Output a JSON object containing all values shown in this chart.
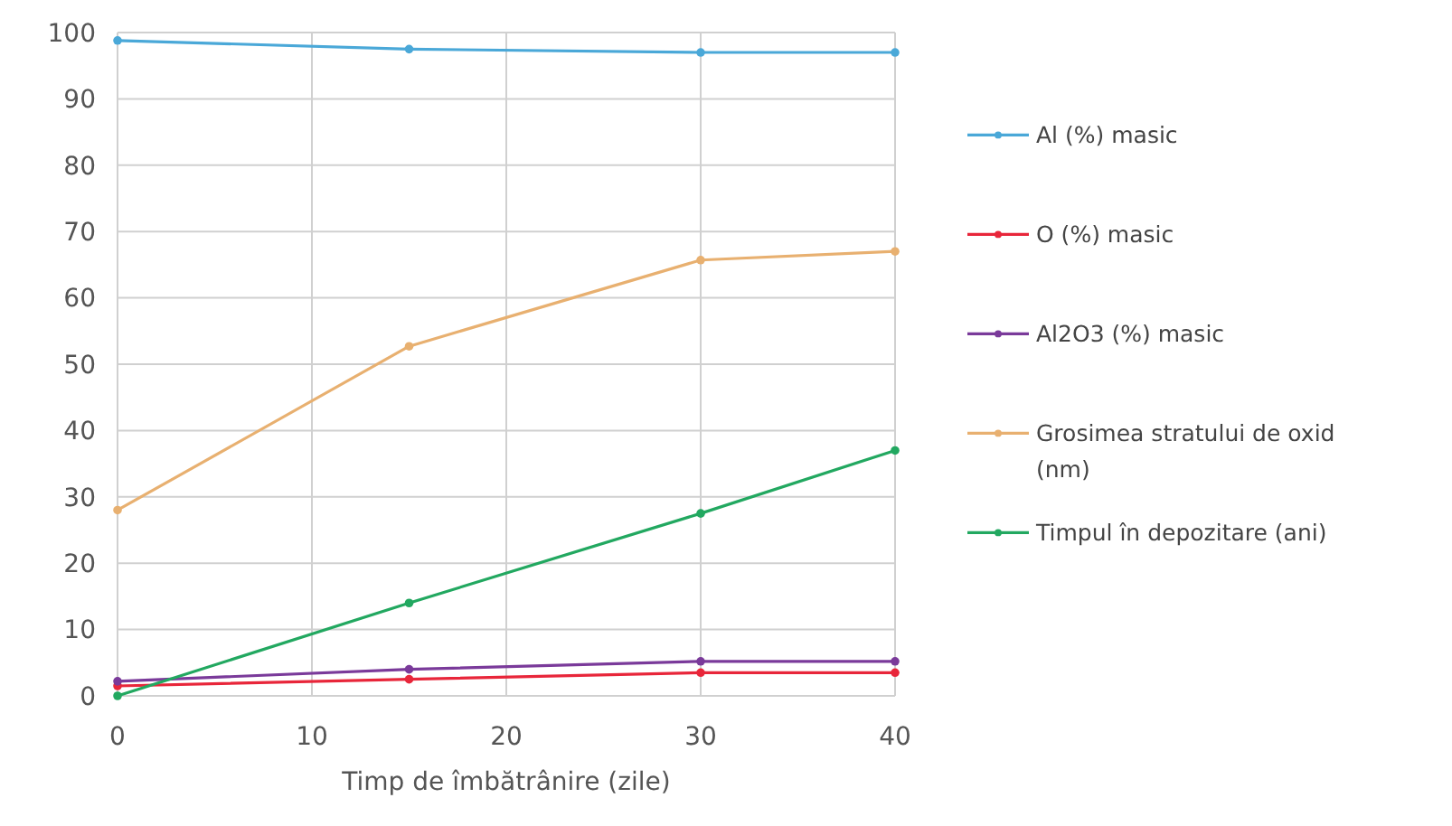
{
  "chart_data": {
    "type": "line",
    "xlabel": "Timp de îmbătrânire (zile)",
    "x": [
      0,
      15,
      30,
      40
    ],
    "xlim": [
      0,
      40
    ],
    "xticks": [
      0,
      10,
      20,
      30,
      40
    ],
    "ylim": [
      0,
      100
    ],
    "yticks": [
      0,
      10,
      20,
      30,
      40,
      50,
      60,
      70,
      80,
      90,
      100
    ],
    "grid": true,
    "legend": "right",
    "marker": "circle",
    "line_style": "solid",
    "series": [
      {
        "name": "Al (%) masic",
        "color": "#4aa8d8",
        "values": [
          98.8,
          97.5,
          97,
          97
        ]
      },
      {
        "name": "O (%) masic",
        "color": "#e8263a",
        "values": [
          1.5,
          2.5,
          3.5,
          3.5
        ]
      },
      {
        "name": "Al2O3 (%) masic",
        "color": "#7a3a9a",
        "values": [
          2.2,
          4,
          5.2,
          5.2
        ]
      },
      {
        "name": "Grosimea stratului de oxid (nm)",
        "color": "#e8b070",
        "values": [
          28,
          52.7,
          65.7,
          67
        ]
      },
      {
        "name": "Timpul în depozitare (ani)",
        "color": "#22a860",
        "values": [
          0,
          14,
          27.5,
          37
        ]
      }
    ]
  }
}
